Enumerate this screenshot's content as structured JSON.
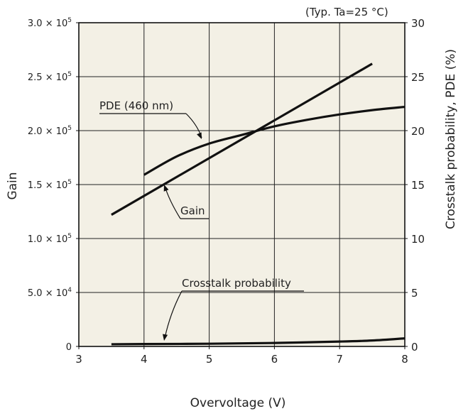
{
  "chart_data": {
    "type": "line",
    "note": "(Typ. Ta=25 °C)",
    "xlabel": "Overvoltage (V)",
    "ylabel_left": "Gain",
    "ylabel_right": "Crosstalk probability, PDE (%)",
    "xlim": [
      3,
      8
    ],
    "ylim_left": [
      0,
      300000
    ],
    "ylim_right": [
      0,
      30
    ],
    "x_ticks": [
      "3",
      "4",
      "5",
      "6",
      "7",
      "8"
    ],
    "y_left_ticks": [
      {
        "mantissa": "0",
        "exp": ""
      },
      {
        "mantissa": "5.0 × 10",
        "exp": "4"
      },
      {
        "mantissa": "1.0 × 10",
        "exp": "5"
      },
      {
        "mantissa": "1.5 × 10",
        "exp": "5"
      },
      {
        "mantissa": "2.0 × 10",
        "exp": "5"
      },
      {
        "mantissa": "2.5 × 10",
        "exp": "5"
      },
      {
        "mantissa": "3.0 × 10",
        "exp": "5"
      }
    ],
    "y_right_ticks": [
      "0",
      "5",
      "10",
      "15",
      "20",
      "25",
      "30"
    ],
    "grid": true,
    "series": [
      {
        "name": "Gain",
        "axis": "left",
        "x": [
          3.5,
          7.5
        ],
        "y": [
          122000,
          262000
        ]
      },
      {
        "name": "PDE (460 nm)",
        "axis": "right",
        "x": [
          4.0,
          4.5,
          5.0,
          5.5,
          6.0,
          6.5,
          7.0,
          7.5,
          8.0
        ],
        "y": [
          15.9,
          17.6,
          18.8,
          19.6,
          20.4,
          21.0,
          21.5,
          21.9,
          22.2
        ]
      },
      {
        "name": "Crosstalk probability",
        "axis": "right",
        "x": [
          3.5,
          4.0,
          5.0,
          6.0,
          7.0,
          7.5,
          8.0
        ],
        "y": [
          0.2,
          0.22,
          0.25,
          0.32,
          0.45,
          0.55,
          0.75
        ]
      }
    ]
  }
}
